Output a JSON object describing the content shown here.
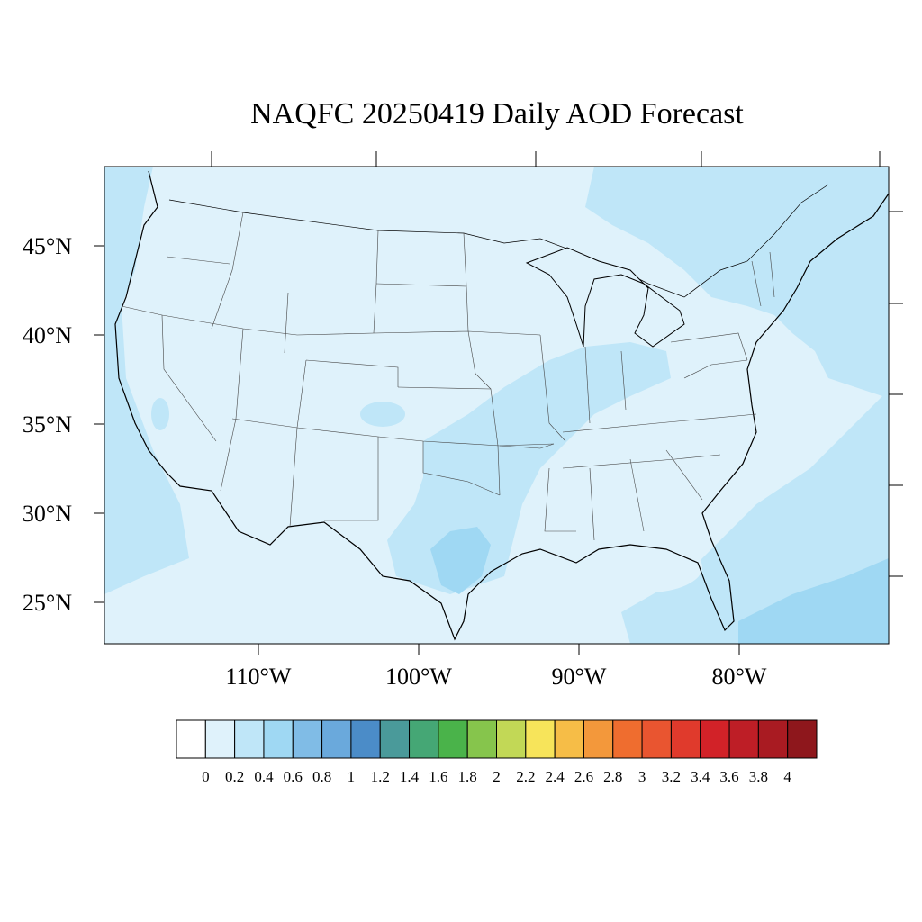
{
  "title": "NAQFC 20250419 Daily AOD Forecast",
  "map": {
    "region": "Contiguous United States",
    "projection": "Lambert conformal",
    "lat_labels": [
      "45°N",
      "40°N",
      "35°N",
      "30°N",
      "25°N"
    ],
    "lon_labels": [
      "110°W",
      "100°W",
      "90°W",
      "80°W"
    ],
    "background_color": "#dff2fb",
    "aod_colors": {
      "level_0_2": "#dff2fb",
      "level_0_4": "#bfe6f8",
      "level_0_6": "#9fd8f3"
    }
  },
  "colorbar": {
    "labels": [
      "0",
      "0.2",
      "0.4",
      "0.6",
      "0.8",
      "1",
      "1.2",
      "1.4",
      "1.6",
      "1.8",
      "2",
      "2.2",
      "2.4",
      "2.6",
      "2.8",
      "3",
      "3.2",
      "3.4",
      "3.6",
      "3.8",
      "4"
    ],
    "colors": [
      "#ffffff",
      "#dff2fb",
      "#bfe6f8",
      "#9fd8f3",
      "#80bce6",
      "#6aa9dc",
      "#4b8cc8",
      "#4a9a9a",
      "#45a775",
      "#4ab34a",
      "#86c54c",
      "#c2d856",
      "#f7e45a",
      "#f6bd47",
      "#f3983b",
      "#ef6d2f",
      "#e95530",
      "#e03a2c",
      "#d22228",
      "#be1e26",
      "#a91b22",
      "#8e171c"
    ]
  }
}
